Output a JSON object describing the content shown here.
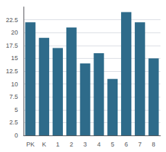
{
  "chart_data": {
    "type": "bar",
    "categories": [
      "PK",
      "K",
      "1",
      "2",
      "3",
      "4",
      "5",
      "6",
      "7",
      "8"
    ],
    "values": [
      22,
      19,
      17,
      21,
      14,
      16,
      11,
      24,
      22,
      15
    ],
    "color": "#2e6b8a",
    "ylim": [
      0,
      25
    ],
    "yticks": [
      0,
      2.5,
      5,
      7.5,
      10,
      12.5,
      15,
      17.5,
      20,
      22.5
    ],
    "grid": true
  }
}
